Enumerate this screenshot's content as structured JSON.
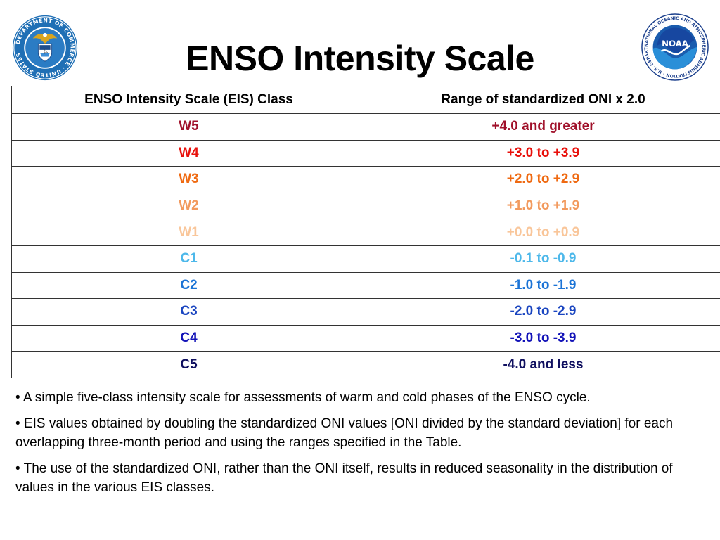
{
  "title": "ENSO Intensity Scale",
  "logos": {
    "left": {
      "name": "department-of-commerce-seal",
      "text": "DEPARTMENT OF COMMERCE · UNITED STATES OF AMERICA"
    },
    "right": {
      "name": "noaa-logo",
      "text": "NOAA",
      "ring_text": "NATIONAL OCEANIC AND ATMOSPHERIC ADMINISTRATION · U.S. DEPARTMENT OF COMMERCE"
    }
  },
  "table": {
    "headers": [
      "ENSO Intensity Scale (EIS) Class",
      "Range of standardized ONI x 2.0"
    ],
    "rows": [
      {
        "class": "W5",
        "range": "+4.0 and greater",
        "color": "#a0102a"
      },
      {
        "class": "W4",
        "range": "+3.0 to +3.9",
        "color": "#e8110c"
      },
      {
        "class": "W3",
        "range": "+2.0 to +2.9",
        "color": "#ef6a12"
      },
      {
        "class": "W2",
        "range": "+1.0 to +1.9",
        "color": "#f29a5e"
      },
      {
        "class": "W1",
        "range": "+0.0 to +0.9",
        "color": "#f9c69a"
      },
      {
        "class": "C1",
        "range": "-0.1 to -0.9",
        "color": "#4db8ea"
      },
      {
        "class": "C2",
        "range": "-1.0 to -1.9",
        "color": "#1c74d6"
      },
      {
        "class": "C3",
        "range": "-2.0 to -2.9",
        "color": "#1a45c0"
      },
      {
        "class": "C4",
        "range": "-3.0 to -3.9",
        "color": "#1414b8"
      },
      {
        "class": "C5",
        "range": "-4.0 and less",
        "color": "#101060"
      }
    ]
  },
  "notes": [
    "• A simple five-class intensity scale for assessments of warm and cold phases of the ENSO cycle.",
    "• EIS values obtained by doubling the standardized ONI values [ONI divided by the standard deviation] for each overlapping three-month period and using the ranges specified in the Table.",
    "• The use of the standardized ONI, rather than the ONI itself, results in reduced seasonality in the distribution of values in the various EIS classes."
  ]
}
